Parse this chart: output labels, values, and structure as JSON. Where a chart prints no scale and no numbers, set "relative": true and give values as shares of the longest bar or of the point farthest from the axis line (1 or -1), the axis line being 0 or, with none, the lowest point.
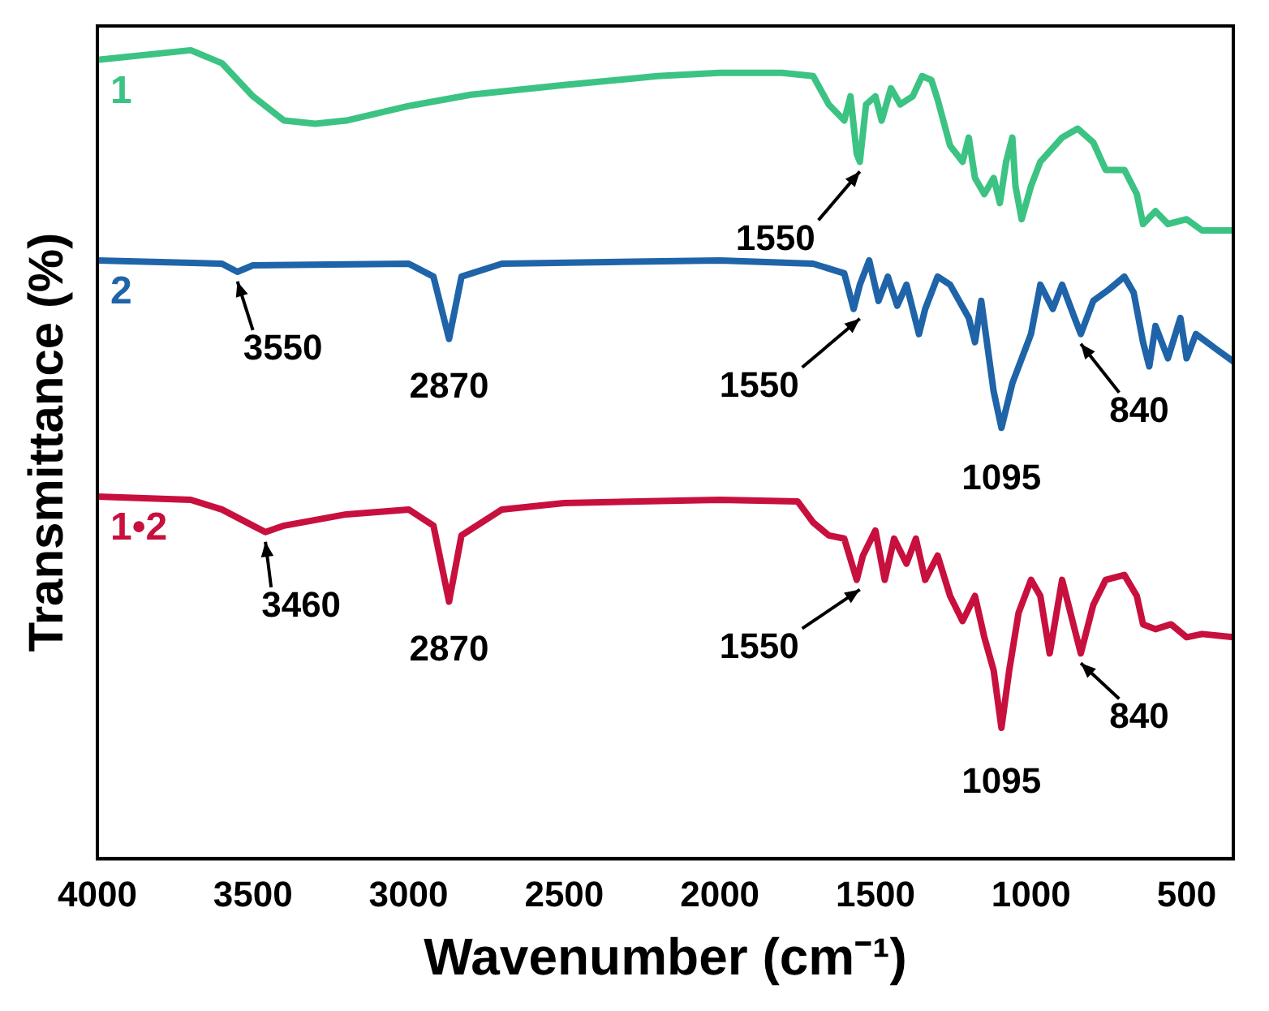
{
  "chart_data": {
    "type": "line",
    "relative": true,
    "xlabel": "Wavenumber (cm⁻¹)",
    "ylabel": "Transmittance (%)",
    "xlim": [
      4000,
      350
    ],
    "xticks": [
      4000,
      3500,
      3000,
      2500,
      2000,
      1500,
      1000,
      500
    ],
    "legend": false,
    "marker": "none",
    "line_style": "solid",
    "series": [
      {
        "name": "1",
        "color": "#3cc383",
        "x": [
          4000,
          3700,
          3600,
          3500,
          3400,
          3300,
          3200,
          3000,
          2800,
          2500,
          2200,
          2000,
          1800,
          1700,
          1650,
          1600,
          1580,
          1560,
          1550,
          1530,
          1500,
          1480,
          1450,
          1420,
          1380,
          1350,
          1320,
          1300,
          1260,
          1220,
          1200,
          1180,
          1150,
          1120,
          1100,
          1080,
          1060,
          1050,
          1030,
          1000,
          970,
          900,
          850,
          800,
          760,
          700,
          660,
          640,
          600,
          560,
          500,
          450,
          350
        ],
        "values": [
          0.988,
          1.0,
          0.984,
          0.943,
          0.913,
          0.909,
          0.913,
          0.931,
          0.945,
          0.957,
          0.968,
          0.972,
          0.972,
          0.968,
          0.933,
          0.913,
          0.943,
          0.872,
          0.862,
          0.933,
          0.943,
          0.913,
          0.953,
          0.933,
          0.943,
          0.968,
          0.963,
          0.939,
          0.882,
          0.862,
          0.892,
          0.842,
          0.822,
          0.842,
          0.811,
          0.862,
          0.892,
          0.832,
          0.791,
          0.832,
          0.862,
          0.892,
          0.903,
          0.886,
          0.852,
          0.852,
          0.822,
          0.785,
          0.801,
          0.785,
          0.791,
          0.777,
          0.777
        ]
      },
      {
        "name": "2",
        "color": "#1f64a8",
        "x": [
          4000,
          3600,
          3550,
          3500,
          3000,
          2920,
          2870,
          2830,
          2700,
          2000,
          1700,
          1600,
          1570,
          1550,
          1520,
          1490,
          1460,
          1430,
          1400,
          1360,
          1340,
          1300,
          1260,
          1200,
          1180,
          1160,
          1120,
          1095,
          1060,
          1000,
          970,
          930,
          900,
          860,
          840,
          800,
          750,
          700,
          670,
          640,
          620,
          600,
          560,
          520,
          500,
          470,
          400,
          350
        ],
        "values": [
          0.74,
          0.736,
          0.726,
          0.734,
          0.736,
          0.72,
          0.643,
          0.72,
          0.736,
          0.74,
          0.736,
          0.724,
          0.68,
          0.71,
          0.74,
          0.69,
          0.72,
          0.684,
          0.71,
          0.649,
          0.68,
          0.72,
          0.71,
          0.669,
          0.639,
          0.69,
          0.578,
          0.533,
          0.588,
          0.649,
          0.71,
          0.68,
          0.71,
          0.669,
          0.649,
          0.69,
          0.704,
          0.72,
          0.7,
          0.639,
          0.609,
          0.659,
          0.619,
          0.669,
          0.619,
          0.649,
          0.629,
          0.615
        ]
      },
      {
        "name": "1•2",
        "color": "#c8103f",
        "x": [
          4000,
          3700,
          3600,
          3500,
          3460,
          3400,
          3200,
          3000,
          2920,
          2870,
          2830,
          2700,
          2500,
          2000,
          1750,
          1700,
          1650,
          1600,
          1560,
          1540,
          1500,
          1470,
          1440,
          1400,
          1370,
          1340,
          1300,
          1260,
          1220,
          1180,
          1150,
          1120,
          1095,
          1070,
          1040,
          1000,
          970,
          940,
          900,
          860,
          840,
          800,
          760,
          700,
          660,
          640,
          600,
          550,
          500,
          450,
          350
        ],
        "values": [
          0.448,
          0.444,
          0.432,
          0.412,
          0.404,
          0.412,
          0.426,
          0.432,
          0.412,
          0.318,
          0.4,
          0.432,
          0.44,
          0.444,
          0.442,
          0.416,
          0.4,
          0.396,
          0.345,
          0.375,
          0.406,
          0.345,
          0.396,
          0.365,
          0.396,
          0.345,
          0.375,
          0.325,
          0.294,
          0.325,
          0.274,
          0.233,
          0.162,
          0.233,
          0.304,
          0.345,
          0.325,
          0.254,
          0.345,
          0.284,
          0.254,
          0.314,
          0.345,
          0.351,
          0.325,
          0.29,
          0.284,
          0.29,
          0.274,
          0.278,
          0.274
        ]
      }
    ],
    "annotations": [
      {
        "text": "1550",
        "x": 1550,
        "y": 0.862
      },
      {
        "text": "3550",
        "x": 3550,
        "y": 0.726
      },
      {
        "text": "2870",
        "x": 2870,
        "y": 0.643
      },
      {
        "text": "1550",
        "x": 1550,
        "y": 0.68
      },
      {
        "text": "1095",
        "x": 1095,
        "y": 0.533
      },
      {
        "text": "840",
        "x": 840,
        "y": 0.649
      },
      {
        "text": "3460",
        "x": 3460,
        "y": 0.404
      },
      {
        "text": "2870",
        "x": 2870,
        "y": 0.318
      },
      {
        "text": "1550",
        "x": 1550,
        "y": 0.345
      },
      {
        "text": "1095",
        "x": 1095,
        "y": 0.162
      },
      {
        "text": "840",
        "x": 840,
        "y": 0.254
      }
    ]
  }
}
